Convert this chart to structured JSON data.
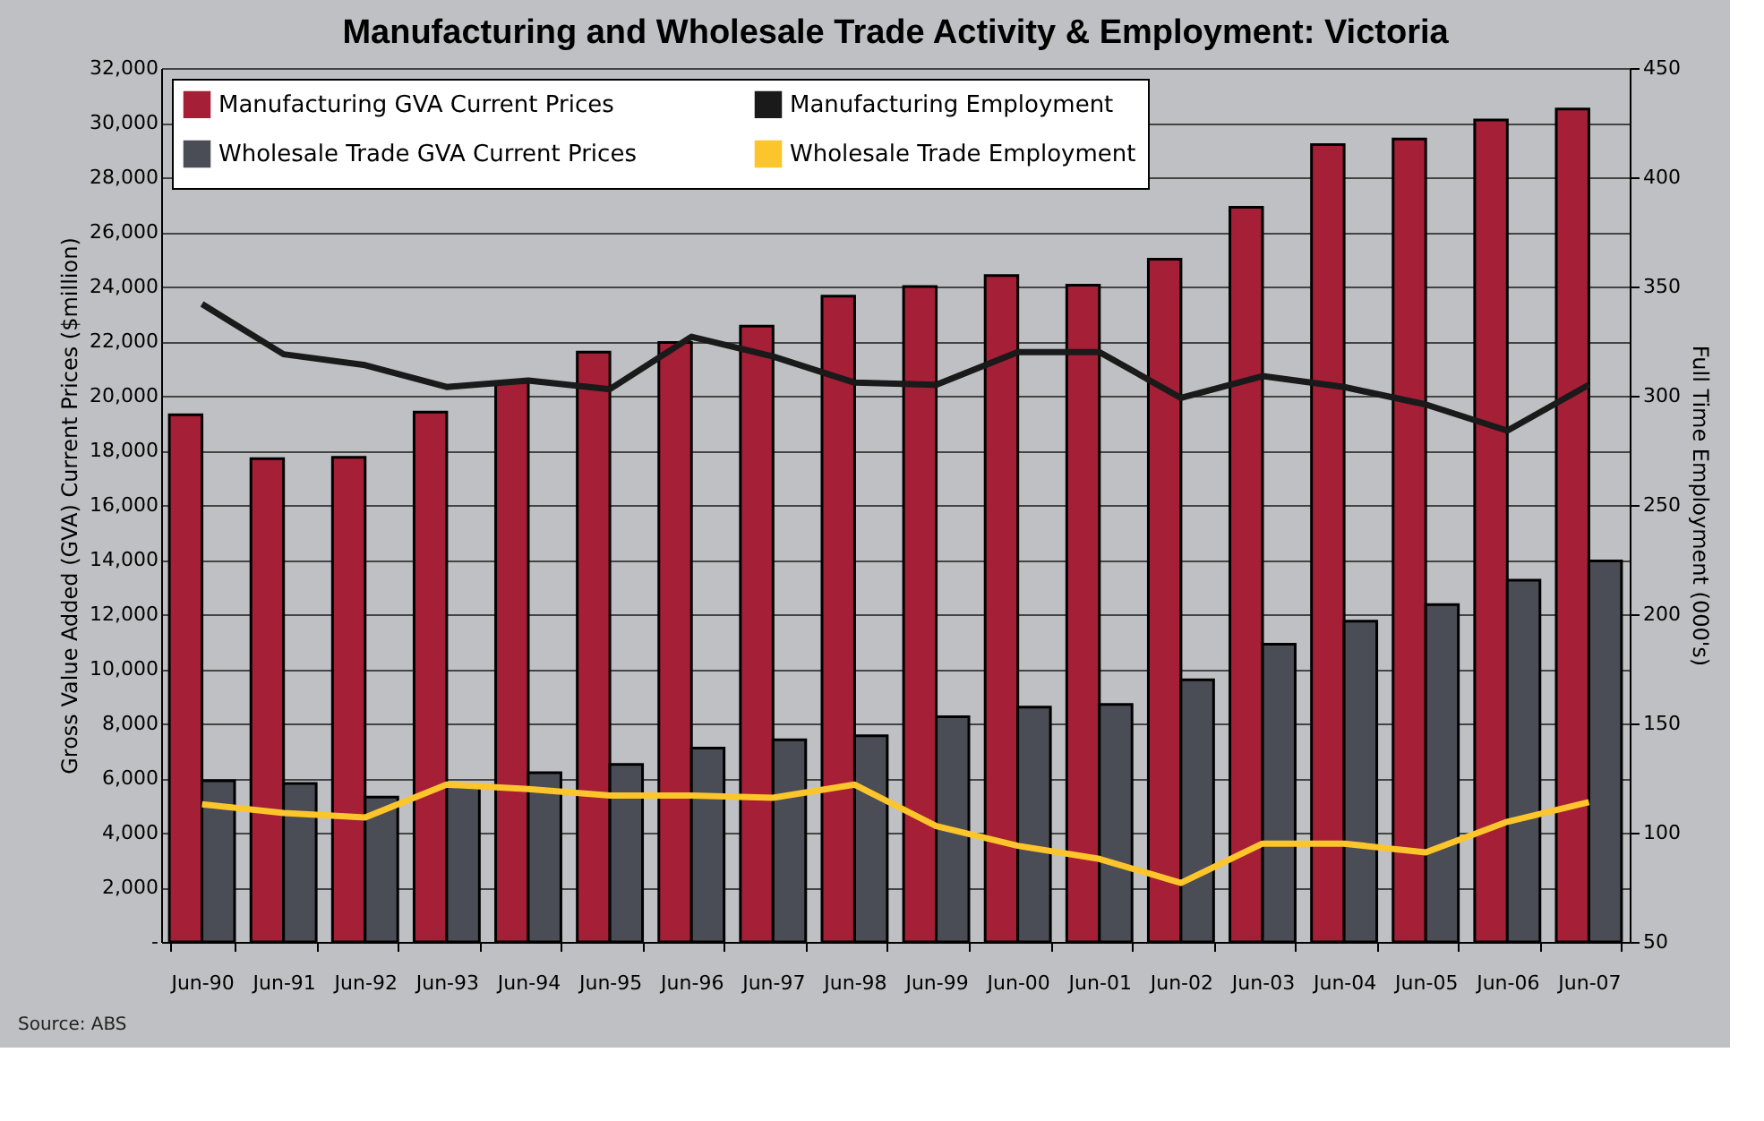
{
  "chart_data": {
    "type": "bar",
    "title": "Manufacturing and Wholesale Trade Activity & Employment: Victoria",
    "categories": [
      "Jun-90",
      "Jun-91",
      "Jun-92",
      "Jun-93",
      "Jun-94",
      "Jun-95",
      "Jun-96",
      "Jun-97",
      "Jun-98",
      "Jun-99",
      "Jun-00",
      "Jun-01",
      "Jun-02",
      "Jun-03",
      "Jun-04",
      "Jun-05",
      "Jun-06",
      "Jun-07"
    ],
    "series": [
      {
        "name": "Manufacturing GVA Current Prices",
        "type": "bar",
        "color": "#a51f36",
        "values": [
          19300,
          17700,
          17750,
          19400,
          20500,
          21600,
          21950,
          22550,
          23650,
          24000,
          24400,
          24050,
          25000,
          26900,
          29200,
          29400,
          30100,
          30500
        ]
      },
      {
        "name": "Wholesale Trade GVA Current Prices",
        "type": "bar",
        "color": "#4a4d55",
        "values": [
          5900,
          5800,
          5300,
          5700,
          6200,
          6500,
          7100,
          7400,
          7550,
          8250,
          8600,
          8700,
          9600,
          10900,
          11750,
          12350,
          13250,
          13950
        ]
      },
      {
        "name": "Manufacturing Employment",
        "type": "line",
        "axis": "y2",
        "color": "#1a1a1a",
        "values": [
          342,
          319,
          314,
          304,
          307,
          303,
          327,
          318,
          306,
          305,
          320,
          320,
          299,
          309,
          304,
          296,
          284,
          305
        ]
      },
      {
        "name": "Wholesale Trade Employment",
        "type": "line",
        "axis": "y2",
        "color": "#fdc52c",
        "values": [
          113,
          109,
          107,
          122,
          120,
          117,
          117,
          116,
          122,
          103,
          94,
          88,
          77,
          95,
          95,
          91,
          105,
          114
        ]
      }
    ],
    "ylabel": "Gross Value Added (GVA) Current Prices ($million)",
    "y2label": "Full Time Employment (000's)",
    "ylim": [
      0,
      32000
    ],
    "yticks": [
      {
        "value": 0,
        "label": "-"
      },
      {
        "value": 2000,
        "label": "2,000"
      },
      {
        "value": 4000,
        "label": "4,000"
      },
      {
        "value": 6000,
        "label": "6,000"
      },
      {
        "value": 8000,
        "label": "8,000"
      },
      {
        "value": 10000,
        "label": "10,000"
      },
      {
        "value": 12000,
        "label": "12,000"
      },
      {
        "value": 14000,
        "label": "14,000"
      },
      {
        "value": 16000,
        "label": "16,000"
      },
      {
        "value": 18000,
        "label": "18,000"
      },
      {
        "value": 20000,
        "label": "20,000"
      },
      {
        "value": 22000,
        "label": "22,000"
      },
      {
        "value": 24000,
        "label": "24,000"
      },
      {
        "value": 26000,
        "label": "26,000"
      },
      {
        "value": 28000,
        "label": "28,000"
      },
      {
        "value": 30000,
        "label": "30,000"
      },
      {
        "value": 32000,
        "label": "32,000"
      }
    ],
    "y2lim": [
      50,
      450
    ],
    "y2ticks": [
      50,
      100,
      150,
      200,
      250,
      300,
      350,
      400,
      450
    ],
    "grid": "y",
    "legend": "top left",
    "annotations": [
      "Source: ABS"
    ]
  }
}
